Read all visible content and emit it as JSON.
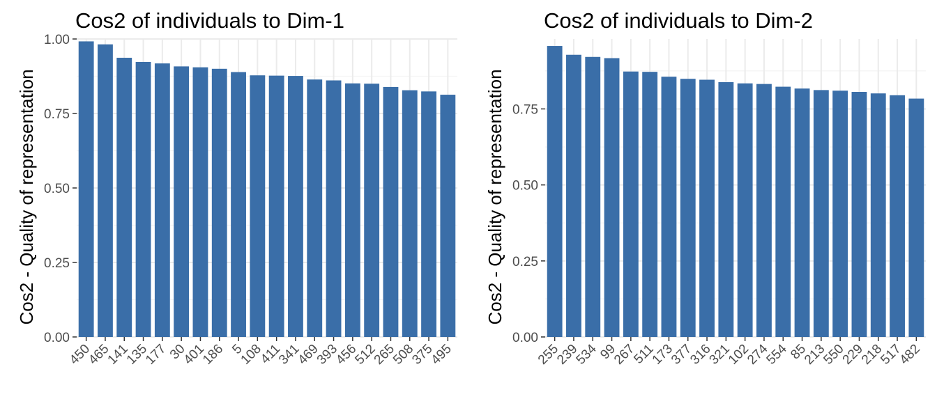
{
  "colors": {
    "bar": "#3A6EA8",
    "grid_major": "#EBEBEB",
    "grid_minor": "#F4F4F4",
    "tick_text": "#4D4D4D",
    "tick_mark": "#333333"
  },
  "charts": [
    {
      "title": "Cos2 of individuals to Dim-1",
      "ylabel": "Cos2 - Quality of representation"
    },
    {
      "title": "Cos2 of individuals to Dim-2",
      "ylabel": "Cos2 - Quality of representation"
    }
  ],
  "chart_data": [
    {
      "type": "bar",
      "title": "Cos2 of individuals to Dim-1",
      "xlabel": "",
      "ylabel": "Cos2 - Quality of representation",
      "categories": [
        "450",
        "465",
        "141",
        "135",
        "177",
        "30",
        "401",
        "186",
        "5",
        "108",
        "411",
        "341",
        "469",
        "393",
        "456",
        "512",
        "265",
        "508",
        "375",
        "495"
      ],
      "values": [
        0.992,
        0.982,
        0.937,
        0.923,
        0.918,
        0.908,
        0.905,
        0.9,
        0.889,
        0.878,
        0.877,
        0.876,
        0.864,
        0.861,
        0.851,
        0.85,
        0.839,
        0.828,
        0.824,
        0.813
      ],
      "ylim": [
        0,
        1.0
      ],
      "yticks": [
        "0.00",
        "0.25",
        "0.50",
        "0.75",
        "1.00"
      ],
      "grid": true
    },
    {
      "type": "bar",
      "title": "Cos2 of individuals to Dim-2",
      "xlabel": "",
      "ylabel": "Cos2 - Quality of representation",
      "categories": [
        "255",
        "239",
        "534",
        "99",
        "267",
        "511",
        "173",
        "377",
        "316",
        "321",
        "102",
        "274",
        "554",
        "85",
        "213",
        "550",
        "229",
        "218",
        "517",
        "482"
      ],
      "values": [
        0.957,
        0.928,
        0.921,
        0.917,
        0.873,
        0.872,
        0.856,
        0.849,
        0.846,
        0.838,
        0.834,
        0.832,
        0.823,
        0.817,
        0.812,
        0.81,
        0.806,
        0.801,
        0.795,
        0.784
      ],
      "ylim": [
        0,
        0.98
      ],
      "yticks": [
        "0.00",
        "0.25",
        "0.50",
        "0.75"
      ],
      "grid": true
    }
  ]
}
